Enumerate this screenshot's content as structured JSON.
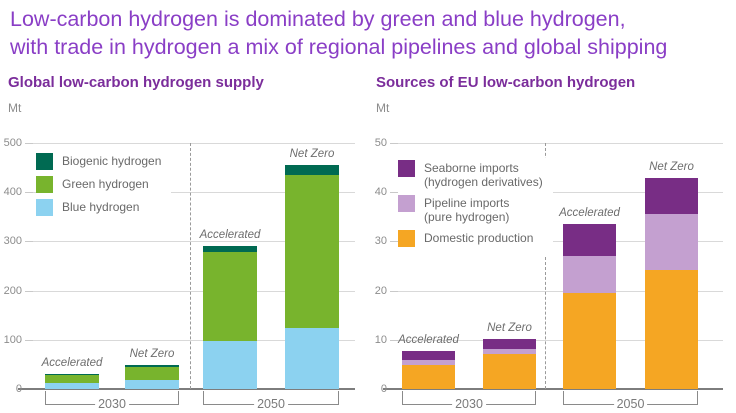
{
  "header": {
    "title_line1": "Low-carbon hydrogen is dominated by green and blue hydrogen,",
    "title_line2": "with trade in hydrogen a mix of regional pipelines and global shipping",
    "title_color": "#8a3ec6"
  },
  "chart_data": [
    {
      "type": "bar",
      "stacked": true,
      "title": "Global low-carbon hydrogen supply",
      "unit_label": "Mt",
      "ylim": [
        0,
        500
      ],
      "yticks": [
        0,
        100,
        200,
        300,
        400,
        500
      ],
      "grid": true,
      "legend_position": "top-left-inside",
      "groups": [
        "2030",
        "2050"
      ],
      "bar_scenarios": [
        "Accelerated",
        "Net Zero",
        "Accelerated",
        "Net Zero"
      ],
      "series": [
        {
          "name": "Blue hydrogen",
          "color": "#8cd2f0",
          "values": [
            13,
            18,
            98,
            125
          ]
        },
        {
          "name": "Green hydrogen",
          "color": "#78b42d",
          "values": [
            15,
            27,
            180,
            310
          ]
        },
        {
          "name": "Biogenic hydrogen",
          "color": "#006a52",
          "values": [
            2,
            3,
            12,
            20
          ]
        }
      ],
      "legend": [
        {
          "label": "Biogenic hydrogen",
          "color": "#006a52"
        },
        {
          "label": "Green hydrogen",
          "color": "#78b42d"
        },
        {
          "label": "Blue hydrogen",
          "color": "#8cd2f0"
        }
      ]
    },
    {
      "type": "bar",
      "stacked": true,
      "title": "Sources of EU low-carbon hydrogen",
      "unit_label": "Mt",
      "ylim": [
        0,
        50
      ],
      "yticks": [
        0,
        10,
        20,
        30,
        40,
        50
      ],
      "grid": true,
      "legend_position": "top-left-inside",
      "groups": [
        "2030",
        "2050"
      ],
      "bar_scenarios": [
        "Accelerated",
        "Net Zero",
        "Accelerated",
        "Net Zero"
      ],
      "series": [
        {
          "name": "Domestic production",
          "color": "#f5a623",
          "values": [
            4.8,
            7.2,
            19.5,
            24.2
          ]
        },
        {
          "name": "Pipeline imports (pure hydrogen)",
          "color": "#c4a0d0",
          "values": [
            1.0,
            1.0,
            7.6,
            11.3
          ]
        },
        {
          "name": "Seaborne imports (hydrogen derivatives)",
          "color": "#782d85",
          "values": [
            1.9,
            2.0,
            6.5,
            7.3
          ]
        }
      ],
      "legend": [
        {
          "label": "Seaborne imports\n(hydrogen derivatives)",
          "color": "#782d85"
        },
        {
          "label": "Pipeline imports\n(pure hydrogen)",
          "color": "#c4a0d0"
        },
        {
          "label": "Domestic production",
          "color": "#f5a623"
        }
      ]
    }
  ]
}
